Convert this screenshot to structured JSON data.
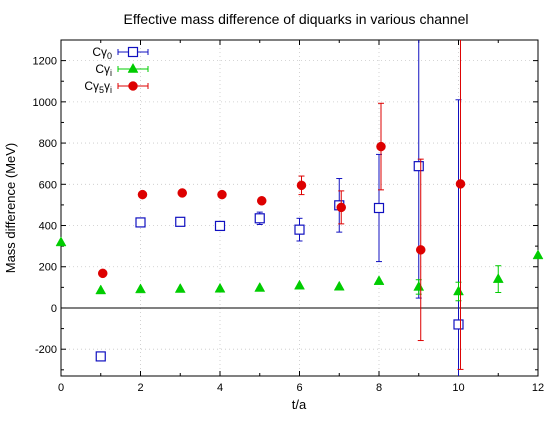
{
  "chart_data": {
    "type": "scatter",
    "title": "Effective mass difference of diquarks in various channel",
    "xlabel": "t/a",
    "ylabel": "Mass difference (MeV)",
    "xlim": [
      0,
      12
    ],
    "ylim": [
      -330,
      1300
    ],
    "x_ticks": [
      "0",
      "2",
      "4",
      "6",
      "8",
      "10",
      "12"
    ],
    "y_ticks": [
      "-200",
      "0",
      "200",
      "400",
      "600",
      "800",
      "1000",
      "1200"
    ],
    "grid": true,
    "legend_position": "top-left",
    "series": [
      {
        "name": "Cγ₀",
        "legend_base": "Cγ",
        "legend_sub": "0",
        "marker": "open-square",
        "color": "#1010c0",
        "points": [
          {
            "x": 1,
            "y": -235,
            "err": 0
          },
          {
            "x": 2,
            "y": 415,
            "err": 0
          },
          {
            "x": 3,
            "y": 418,
            "err": 0
          },
          {
            "x": 4,
            "y": 398,
            "err": 0
          },
          {
            "x": 5,
            "y": 435,
            "err": 30
          },
          {
            "x": 6,
            "y": 380,
            "err": 55
          },
          {
            "x": 7,
            "y": 498,
            "err": 130
          },
          {
            "x": 8,
            "y": 485,
            "err": 260
          },
          {
            "x": 9,
            "y": 688,
            "err": 640
          },
          {
            "x": 10,
            "y": -80,
            "err": 1090
          }
        ]
      },
      {
        "name": "Cγᵢ",
        "legend_base": "Cγ",
        "legend_sub": "i",
        "marker": "filled-triangle",
        "color": "#00cc00",
        "points": [
          {
            "x": 0,
            "y": 318,
            "err": 0
          },
          {
            "x": 1,
            "y": 85,
            "err": 0
          },
          {
            "x": 2,
            "y": 90,
            "err": 0
          },
          {
            "x": 3,
            "y": 92,
            "err": 0
          },
          {
            "x": 4,
            "y": 93,
            "err": 0
          },
          {
            "x": 5,
            "y": 97,
            "err": 0
          },
          {
            "x": 6,
            "y": 108,
            "err": 0
          },
          {
            "x": 7,
            "y": 103,
            "err": 0
          },
          {
            "x": 8,
            "y": 130,
            "err": 0
          },
          {
            "x": 9,
            "y": 102,
            "err": 35
          },
          {
            "x": 10,
            "y": 80,
            "err": 45
          },
          {
            "x": 11,
            "y": 140,
            "err": 65
          },
          {
            "x": 12,
            "y": 255,
            "err": 0
          }
        ]
      },
      {
        "name": "Cγ₅γᵢ",
        "legend_base": "Cγ",
        "legend_sub": "5",
        "legend_mid": "γ",
        "legend_sub2": "i",
        "marker": "filled-circle",
        "color": "#dd0000",
        "points": [
          {
            "x": 1.05,
            "y": 168,
            "err": 0
          },
          {
            "x": 2.05,
            "y": 550,
            "err": 0
          },
          {
            "x": 3.05,
            "y": 558,
            "err": 0
          },
          {
            "x": 4.05,
            "y": 550,
            "err": 0
          },
          {
            "x": 5.05,
            "y": 520,
            "err": 15
          },
          {
            "x": 6.05,
            "y": 595,
            "err": 45
          },
          {
            "x": 7.05,
            "y": 488,
            "err": 80
          },
          {
            "x": 8.05,
            "y": 783,
            "err": 210
          },
          {
            "x": 9.05,
            "y": 282,
            "err": 440
          },
          {
            "x": 10.05,
            "y": 602,
            "err": 900
          }
        ]
      }
    ]
  }
}
